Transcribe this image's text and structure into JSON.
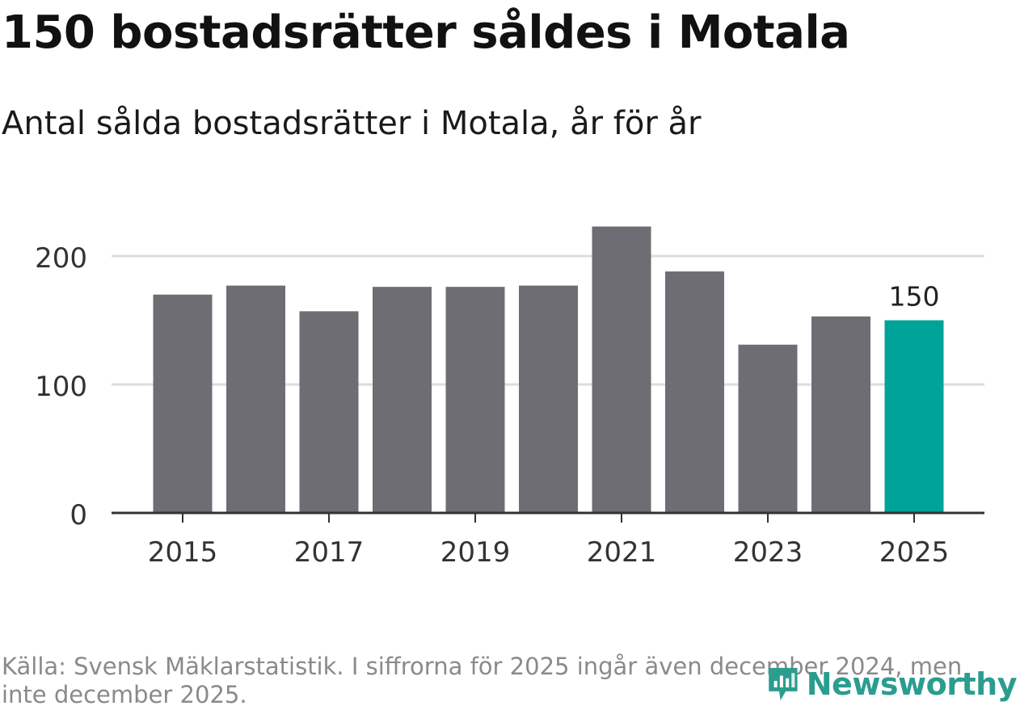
{
  "title": "150 bostadsrätter såldes i Motala",
  "subtitle": "Antal sålda bostadsrätter i Motala, år för år",
  "source": "Källa: Svensk Mäklarstatistik. I siffrorna för 2025 ingår även december 2024, men inte december 2025.",
  "brand": "Newsworthy",
  "colors": {
    "bar": "#6e6d73",
    "highlight": "#00a398",
    "grid": "#dddddd",
    "axis": "#333333",
    "brand": "#2a9d8f"
  },
  "chart_data": {
    "type": "bar",
    "title": "150 bostadsrätter såldes i Motala",
    "subtitle": "Antal sålda bostadsrätter i Motala, år för år",
    "xlabel": "",
    "ylabel": "",
    "categories": [
      "2015",
      "2016",
      "2017",
      "2018",
      "2019",
      "2020",
      "2021",
      "2022",
      "2023",
      "2024",
      "2025"
    ],
    "values": [
      170,
      177,
      157,
      176,
      176,
      177,
      223,
      188,
      131,
      153,
      150
    ],
    "highlight_index": 10,
    "data_labels": [
      {
        "index": 10,
        "text": "150"
      }
    ],
    "x_tick_labels": [
      "2015",
      "2017",
      "2019",
      "2021",
      "2023",
      "2025"
    ],
    "y_ticks": [
      0,
      100,
      200
    ],
    "y_tick_labels": [
      "0",
      "100",
      "200"
    ],
    "ylim": [
      0,
      230
    ],
    "grid": true,
    "legend": "none"
  }
}
